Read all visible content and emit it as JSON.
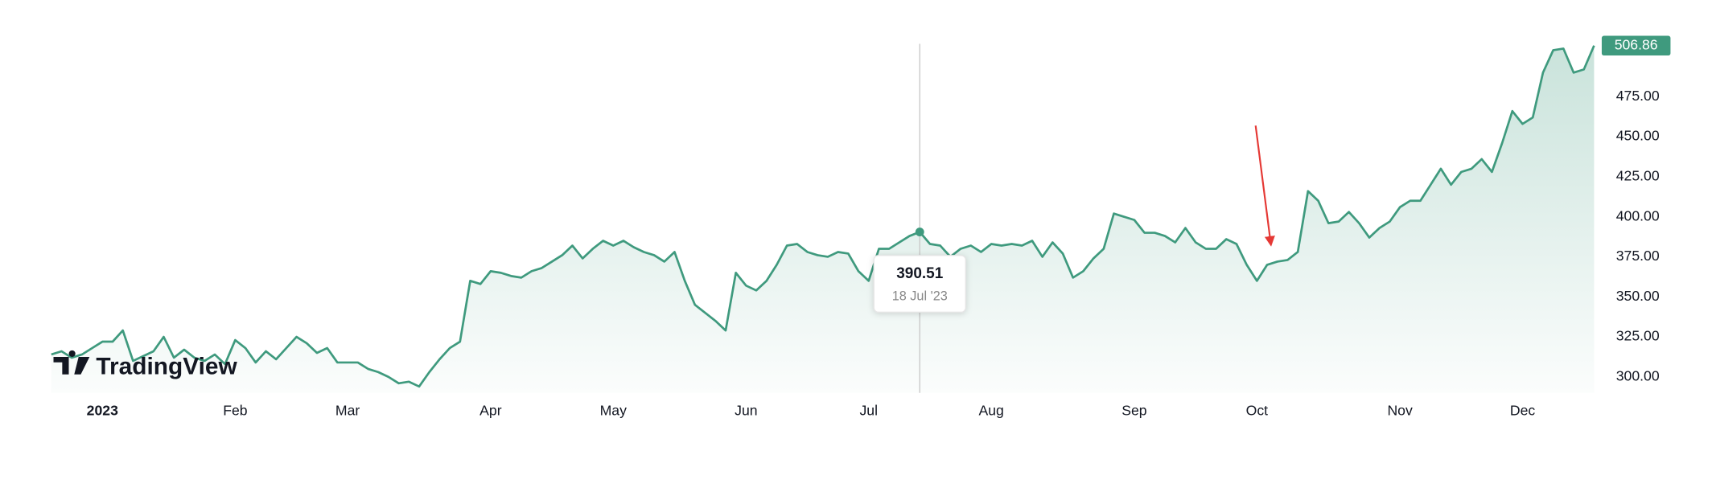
{
  "chart_data": {
    "type": "line",
    "watermark": "TradingView",
    "categories": [
      null,
      null,
      null,
      null,
      null,
      "2023",
      null,
      null,
      null,
      null,
      null,
      null,
      null,
      null,
      null,
      null,
      null,
      null,
      "Feb",
      null,
      null,
      null,
      null,
      null,
      null,
      null,
      null,
      null,
      null,
      "Mar",
      null,
      null,
      null,
      null,
      null,
      null,
      null,
      null,
      null,
      null,
      null,
      null,
      null,
      "Apr",
      null,
      null,
      null,
      null,
      null,
      null,
      null,
      null,
      null,
      null,
      null,
      "May",
      null,
      null,
      null,
      null,
      null,
      null,
      null,
      null,
      null,
      null,
      null,
      null,
      "Jun",
      null,
      null,
      null,
      null,
      null,
      null,
      null,
      null,
      null,
      null,
      null,
      "Jul",
      null,
      null,
      null,
      null,
      null,
      null,
      null,
      null,
      null,
      null,
      null,
      "Aug",
      null,
      null,
      null,
      null,
      null,
      null,
      null,
      null,
      null,
      null,
      null,
      null,
      null,
      "Sep",
      null,
      null,
      null,
      null,
      null,
      null,
      null,
      null,
      null,
      null,
      null,
      "Oct",
      null,
      null,
      null,
      null,
      null,
      null,
      null,
      null,
      null,
      null,
      null,
      null,
      null,
      "Nov",
      null,
      null,
      null,
      null,
      null,
      null,
      null,
      null,
      null,
      null,
      null,
      "Dec",
      null,
      null,
      null,
      null,
      null,
      null,
      null
    ],
    "series": [
      {
        "color": "#3f9a7e",
        "values": [
          314,
          316,
          312,
          314,
          318,
          322,
          322,
          329,
          310,
          313,
          316,
          325,
          312,
          317,
          312,
          310,
          314,
          308,
          323,
          318,
          309,
          316,
          311,
          318,
          325,
          321,
          315,
          318,
          309,
          309,
          309,
          305,
          303,
          300,
          296,
          297,
          294,
          303,
          311,
          318,
          322,
          360,
          358,
          366,
          365,
          363,
          362,
          366,
          368,
          372,
          376,
          382,
          374,
          380,
          385,
          382,
          385,
          381,
          378,
          376,
          372,
          378,
          360,
          345,
          340,
          335,
          329,
          365,
          357,
          354,
          360,
          370,
          382,
          383,
          378,
          376,
          375,
          378,
          377,
          366,
          360,
          380,
          380,
          384,
          388,
          390.51,
          383,
          382,
          375,
          380,
          382,
          378,
          383,
          382,
          383,
          382,
          385,
          375,
          384,
          377,
          362,
          366,
          374,
          380,
          402,
          400,
          398,
          390,
          390,
          388,
          384,
          393,
          384,
          380,
          380,
          386,
          383,
          370,
          360,
          370,
          372,
          373,
          378,
          416,
          410,
          396,
          397,
          403,
          396,
          387,
          393,
          397,
          406,
          410,
          410,
          420,
          430,
          420,
          428,
          430,
          436,
          428,
          446,
          466,
          458,
          462,
          490,
          504,
          505,
          490,
          492,
          506.86
        ]
      }
    ],
    "crosshair": {
      "value": 390.51,
      "label": "18 Jul '23"
    },
    "ylim": [
      290,
      508
    ],
    "yticks": [
      {
        "value": 300,
        "label": "300.00"
      },
      {
        "value": 325,
        "label": "325.00"
      },
      {
        "value": 350,
        "label": "350.00"
      },
      {
        "value": 375,
        "label": "375.00"
      },
      {
        "value": 400,
        "label": "400.00"
      },
      {
        "value": 425,
        "label": "425.00"
      },
      {
        "value": 450,
        "label": "450.00"
      },
      {
        "value": 475,
        "label": "475.00"
      }
    ],
    "grid": false
  }
}
